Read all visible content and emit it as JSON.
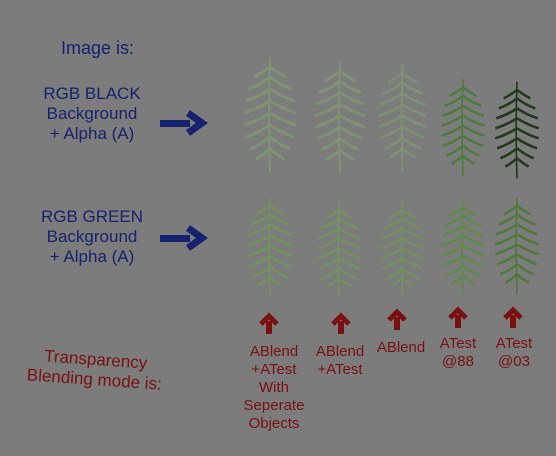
{
  "title": "Image is:",
  "rows": [
    {
      "line1": "RGB BLACK",
      "line2": "Background",
      "line3": "+ Alpha (A)"
    },
    {
      "line1": "RGB GREEN",
      "line2": "Background",
      "line3": "+ Alpha (A)"
    }
  ],
  "mode_label": {
    "line1": "Transparency",
    "line2": "Blending mode is:"
  },
  "modes": [
    {
      "lines": [
        "ABlend",
        "+ATest",
        "With",
        "Seperate",
        "Objects"
      ]
    },
    {
      "lines": [
        "ABlend",
        "+ATest"
      ]
    },
    {
      "lines": [
        "ABlend"
      ]
    },
    {
      "lines": [
        "ATest",
        "@88"
      ]
    },
    {
      "lines": [
        "ATest",
        "@03"
      ]
    }
  ],
  "colors": {
    "background": "#7c7c7c",
    "navy": "#16226e",
    "darkred": "#7a1010",
    "leaf_light": "#7fa86a",
    "leaf_dark": "#1f3a18"
  }
}
